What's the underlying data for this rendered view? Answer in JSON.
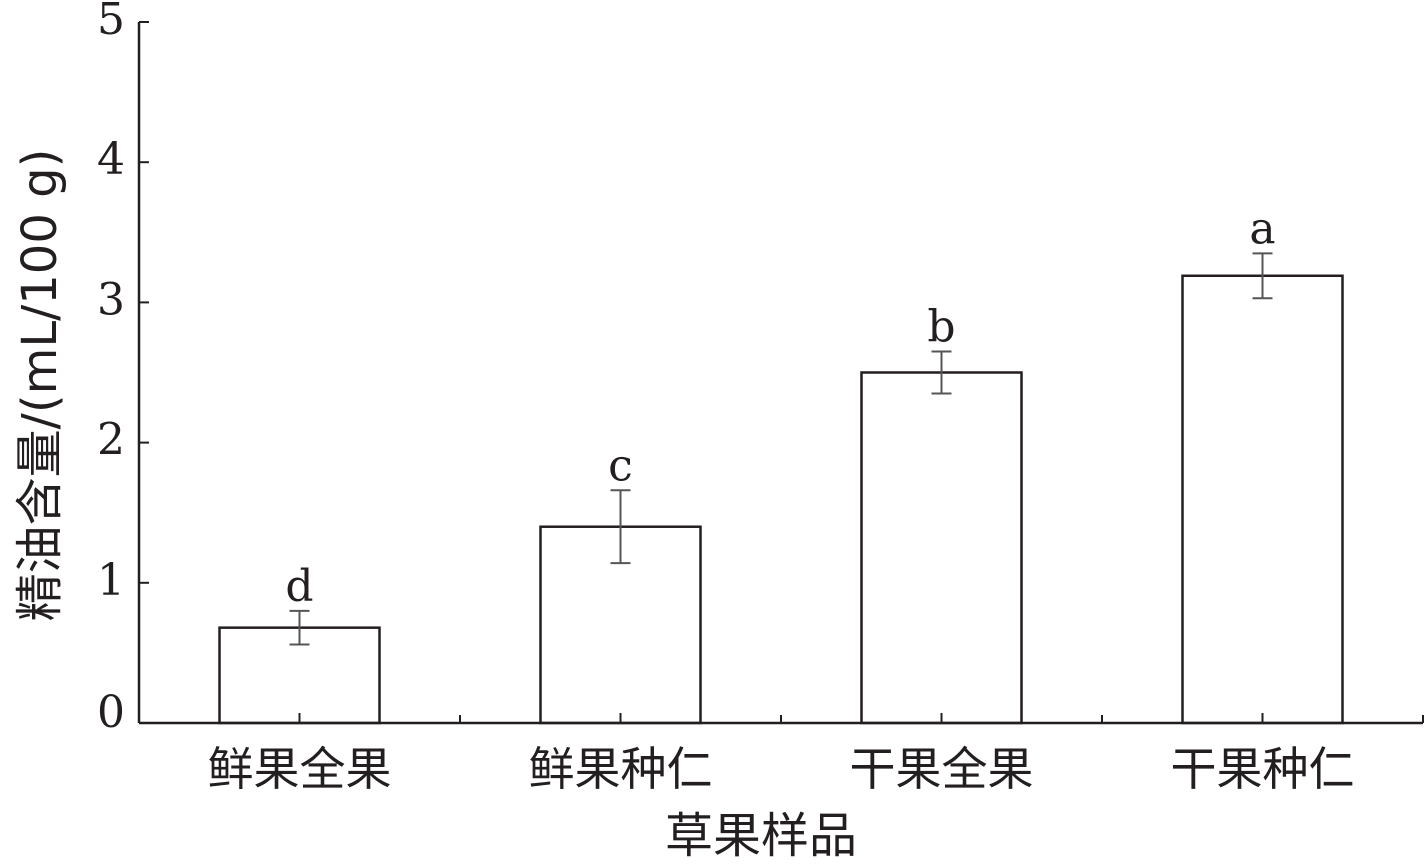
{
  "chart_data": {
    "type": "bar",
    "categories": [
      "鲜果全果",
      "鲜果种仁",
      "干果全果",
      "干果种仁"
    ],
    "values": [
      0.68,
      1.4,
      2.5,
      3.19
    ],
    "error": [
      0.12,
      0.26,
      0.15,
      0.16
    ],
    "significance": [
      "d",
      "c",
      "b",
      "a"
    ],
    "xlabel": "草果样品",
    "ylabel": "精油含量/(mL/100 g)",
    "ylim": [
      0,
      5
    ],
    "yticks": [
      "0",
      "1",
      "2",
      "3",
      "4",
      "5"
    ],
    "grid": false,
    "colors": {
      "axis": "#231f20",
      "bar_fill": "#ffffff",
      "bar_stroke": "#231f20",
      "error_bar": "#555555"
    }
  }
}
